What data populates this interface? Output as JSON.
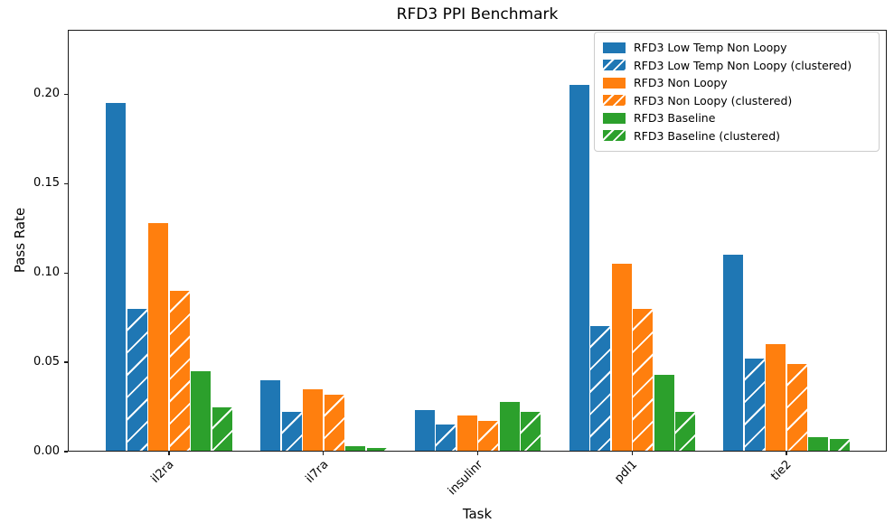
{
  "chart_data": {
    "type": "bar",
    "title": "RFD3 PPI Benchmark",
    "xlabel": "Task",
    "ylabel": "Pass Rate",
    "categories": [
      "il2ra",
      "il7ra",
      "insulinr",
      "pdl1",
      "tie2"
    ],
    "series": [
      {
        "name": "RFD3 Low Temp Non Loopy",
        "color": "#1f77b4",
        "hatched": false,
        "values": [
          0.195,
          0.04,
          0.023,
          0.205,
          0.11
        ]
      },
      {
        "name": "RFD3 Low Temp Non Loopy (clustered)",
        "color": "#1f77b4",
        "hatched": true,
        "values": [
          0.08,
          0.022,
          0.015,
          0.07,
          0.052
        ]
      },
      {
        "name": "RFD3 Non Loopy",
        "color": "#ff7f0e",
        "hatched": false,
        "values": [
          0.128,
          0.035,
          0.02,
          0.105,
          0.06
        ]
      },
      {
        "name": "RFD3 Non Loopy (clustered)",
        "color": "#ff7f0e",
        "hatched": true,
        "values": [
          0.09,
          0.032,
          0.017,
          0.08,
          0.049
        ]
      },
      {
        "name": "RFD3 Baseline",
        "color": "#2ca02c",
        "hatched": false,
        "values": [
          0.045,
          0.003,
          0.028,
          0.043,
          0.008
        ]
      },
      {
        "name": "RFD3 Baseline (clustered)",
        "color": "#2ca02c",
        "hatched": true,
        "values": [
          0.025,
          0.002,
          0.022,
          0.022,
          0.007
        ]
      }
    ],
    "yticks": [
      "0.00",
      "0.05",
      "0.10",
      "0.15",
      "0.20"
    ],
    "ylim": [
      0,
      0.236
    ],
    "legend_position": "upper right",
    "grid": false,
    "hatch_style": "/",
    "hatch_color": "#ffffff"
  }
}
